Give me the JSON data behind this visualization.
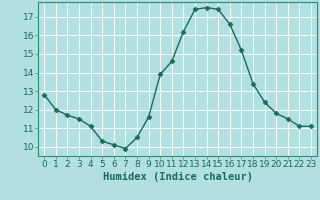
{
  "x": [
    0,
    1,
    2,
    3,
    4,
    5,
    6,
    7,
    8,
    9,
    10,
    11,
    12,
    13,
    14,
    15,
    16,
    17,
    18,
    19,
    20,
    21,
    22,
    23
  ],
  "y": [
    12.8,
    12.0,
    11.7,
    11.5,
    11.1,
    10.3,
    10.1,
    9.9,
    10.5,
    11.6,
    13.9,
    14.6,
    16.2,
    17.4,
    17.5,
    17.4,
    16.6,
    15.2,
    13.4,
    12.4,
    11.8,
    11.5,
    11.1,
    11.1
  ],
  "line_color": "#1a6b5a",
  "marker": "D",
  "marker_size": 2.5,
  "bg_color": "#b2dfdf",
  "grid_color": "#c8eded",
  "grid_major_color": "#ffffff",
  "xlabel": "Humidex (Indice chaleur)",
  "xlabel_fontsize": 7.5,
  "xlim": [
    -0.5,
    23.5
  ],
  "ylim": [
    9.5,
    17.8
  ],
  "yticks": [
    10,
    11,
    12,
    13,
    14,
    15,
    16,
    17
  ],
  "xticks": [
    0,
    1,
    2,
    3,
    4,
    5,
    6,
    7,
    8,
    9,
    10,
    11,
    12,
    13,
    14,
    15,
    16,
    17,
    18,
    19,
    20,
    21,
    22,
    23
  ],
  "tick_fontsize": 6.5,
  "line_width": 1.0,
  "marker_color": "#1a6b5a",
  "spine_color": "#2e8b7a"
}
